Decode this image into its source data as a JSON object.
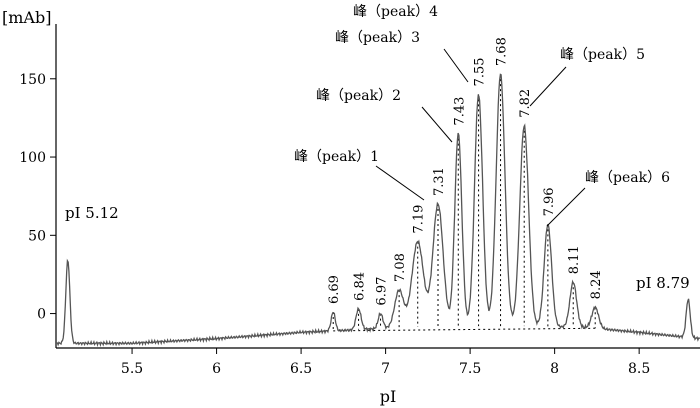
{
  "chart_data": {
    "type": "line",
    "xlabel": "pI",
    "ylabel": "[mAb]",
    "xlim": [
      5.05,
      8.86
    ],
    "ylim": [
      -22,
      185
    ],
    "xticks": [
      5.5,
      6,
      6.5,
      7,
      7.5,
      8,
      8.5
    ],
    "xtick_labels": [
      "5.5",
      "6",
      "6.5",
      "7",
      "7.5",
      "8",
      "8.5"
    ],
    "yticks": [
      0,
      50,
      100,
      150
    ],
    "ytick_labels": [
      "0",
      "50",
      "100",
      "150"
    ],
    "grid": false,
    "legend": "none",
    "baseline": [
      [
        5.05,
        -19
      ],
      [
        5.5,
        -19
      ],
      [
        6.0,
        -16
      ],
      [
        6.5,
        -12
      ],
      [
        6.9,
        -10
      ],
      [
        7.3,
        -8
      ],
      [
        7.8,
        -8
      ],
      [
        8.2,
        -9
      ],
      [
        8.5,
        -12
      ],
      [
        8.86,
        -16
      ]
    ],
    "peaks": [
      {
        "x": 5.12,
        "height": 34,
        "width": 0.012
      },
      {
        "x": 6.69,
        "height": 1,
        "width": 0.012
      },
      {
        "x": 6.84,
        "height": 3,
        "width": 0.015
      },
      {
        "x": 6.97,
        "height": 0,
        "width": 0.014
      },
      {
        "x": 7.08,
        "height": 15,
        "width": 0.026
      },
      {
        "x": 7.19,
        "height": 46,
        "width": 0.034
      },
      {
        "x": 7.31,
        "height": 70,
        "width": 0.03
      },
      {
        "x": 7.43,
        "height": 115,
        "width": 0.021
      },
      {
        "x": 7.55,
        "height": 140,
        "width": 0.024
      },
      {
        "x": 7.68,
        "height": 153,
        "width": 0.026
      },
      {
        "x": 7.82,
        "height": 120,
        "width": 0.026
      },
      {
        "x": 7.96,
        "height": 57,
        "width": 0.022
      },
      {
        "x": 8.11,
        "height": 20,
        "width": 0.02
      },
      {
        "x": 8.24,
        "height": 4,
        "width": 0.02
      },
      {
        "x": 8.79,
        "height": 9,
        "width": 0.012
      }
    ],
    "value_labels": [
      "6.69",
      "6.84",
      "6.97",
      "7.08",
      "7.19",
      "7.31",
      "7.43",
      "7.55",
      "7.68",
      "7.82",
      "7.96",
      "8.11",
      "8.24"
    ],
    "pi_labels": [
      "pI 5.12",
      "pI 8.79"
    ],
    "peak_labels": [
      "峰（peak）1",
      "峰（peak）2",
      "峰（peak）3",
      "峰（peak）4",
      "峰（peak）5",
      "峰（peak）6"
    ]
  }
}
